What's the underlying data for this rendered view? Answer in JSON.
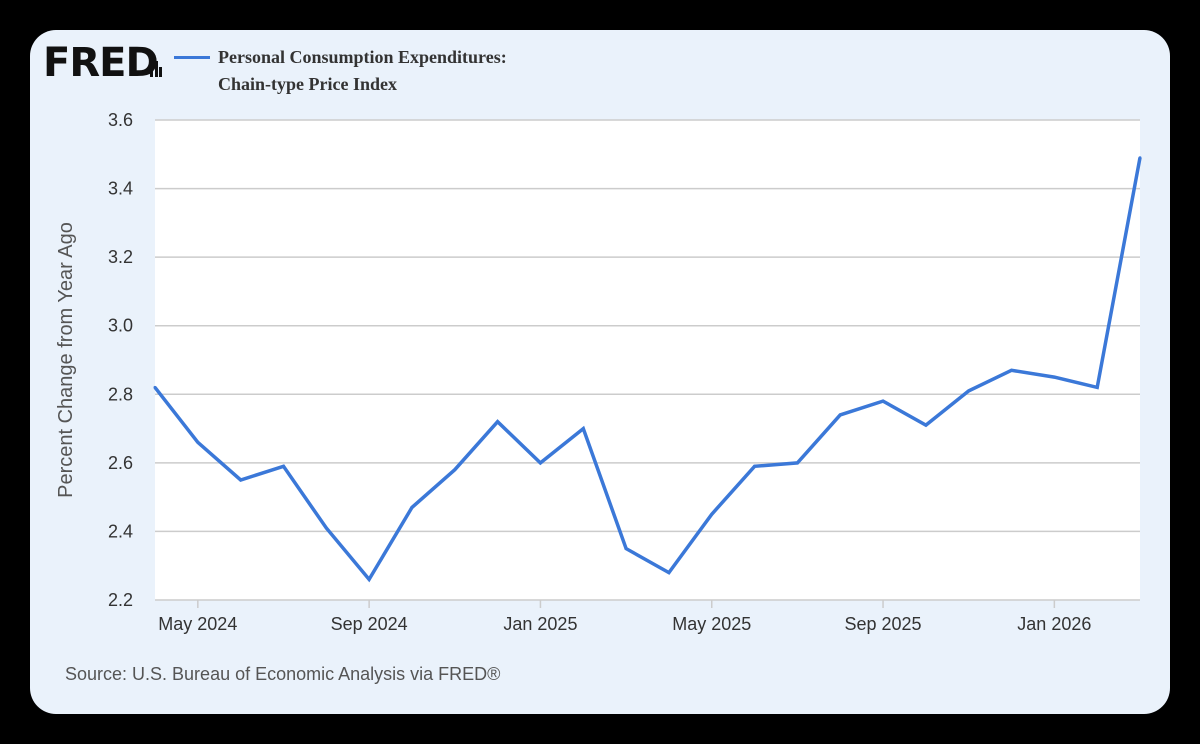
{
  "header": {
    "logo_text": "FRED",
    "series_title_line1": "Personal Consumption Expenditures:",
    "series_title_line2": "Chain-type Price Index"
  },
  "footer": {
    "source": "Source: U.S. Bureau of Economic Analysis via FRED®"
  },
  "colors": {
    "line": "#3B78D8",
    "plot_background": "#FFFFFF",
    "card_background": "#EAF2FB",
    "gridline": "#CCCCCC"
  },
  "chart_data": {
    "type": "line",
    "ylabel": "Percent Change from Year Ago",
    "ylim": [
      2.2,
      3.6
    ],
    "y_ticks": [
      2.2,
      2.4,
      2.6,
      2.8,
      3.0,
      3.2,
      3.4,
      3.6
    ],
    "y_tick_labels": [
      "2.2",
      "2.4",
      "2.6",
      "2.8",
      "3.0",
      "3.2",
      "3.4",
      "3.6"
    ],
    "xlim": [
      "2024-04",
      "2026-03"
    ],
    "x_ticks": [
      "2024-05",
      "2024-09",
      "2025-01",
      "2025-05",
      "2025-09",
      "2026-01"
    ],
    "x_tick_labels": [
      "May 2024",
      "Sep 2024",
      "Jan 2025",
      "May 2025",
      "Sep 2025",
      "Jan 2026"
    ],
    "grid": true,
    "legend_position": "top-left",
    "series": [
      {
        "name": "Personal Consumption Expenditures: Chain-type Price Index",
        "x": [
          "2024-04",
          "2024-05",
          "2024-06",
          "2024-07",
          "2024-08",
          "2024-09",
          "2024-10",
          "2024-11",
          "2024-12",
          "2025-01",
          "2025-02",
          "2025-03",
          "2025-04",
          "2025-05",
          "2025-06",
          "2025-07",
          "2025-08",
          "2025-09",
          "2025-10",
          "2025-11",
          "2025-12",
          "2026-01",
          "2026-02",
          "2026-03"
        ],
        "values": [
          2.82,
          2.66,
          2.55,
          2.59,
          2.41,
          2.26,
          2.47,
          2.58,
          2.72,
          2.6,
          2.7,
          2.35,
          2.28,
          2.45,
          2.59,
          2.6,
          2.74,
          2.78,
          2.71,
          2.81,
          2.87,
          2.85,
          2.82,
          3.49
        ]
      }
    ]
  }
}
